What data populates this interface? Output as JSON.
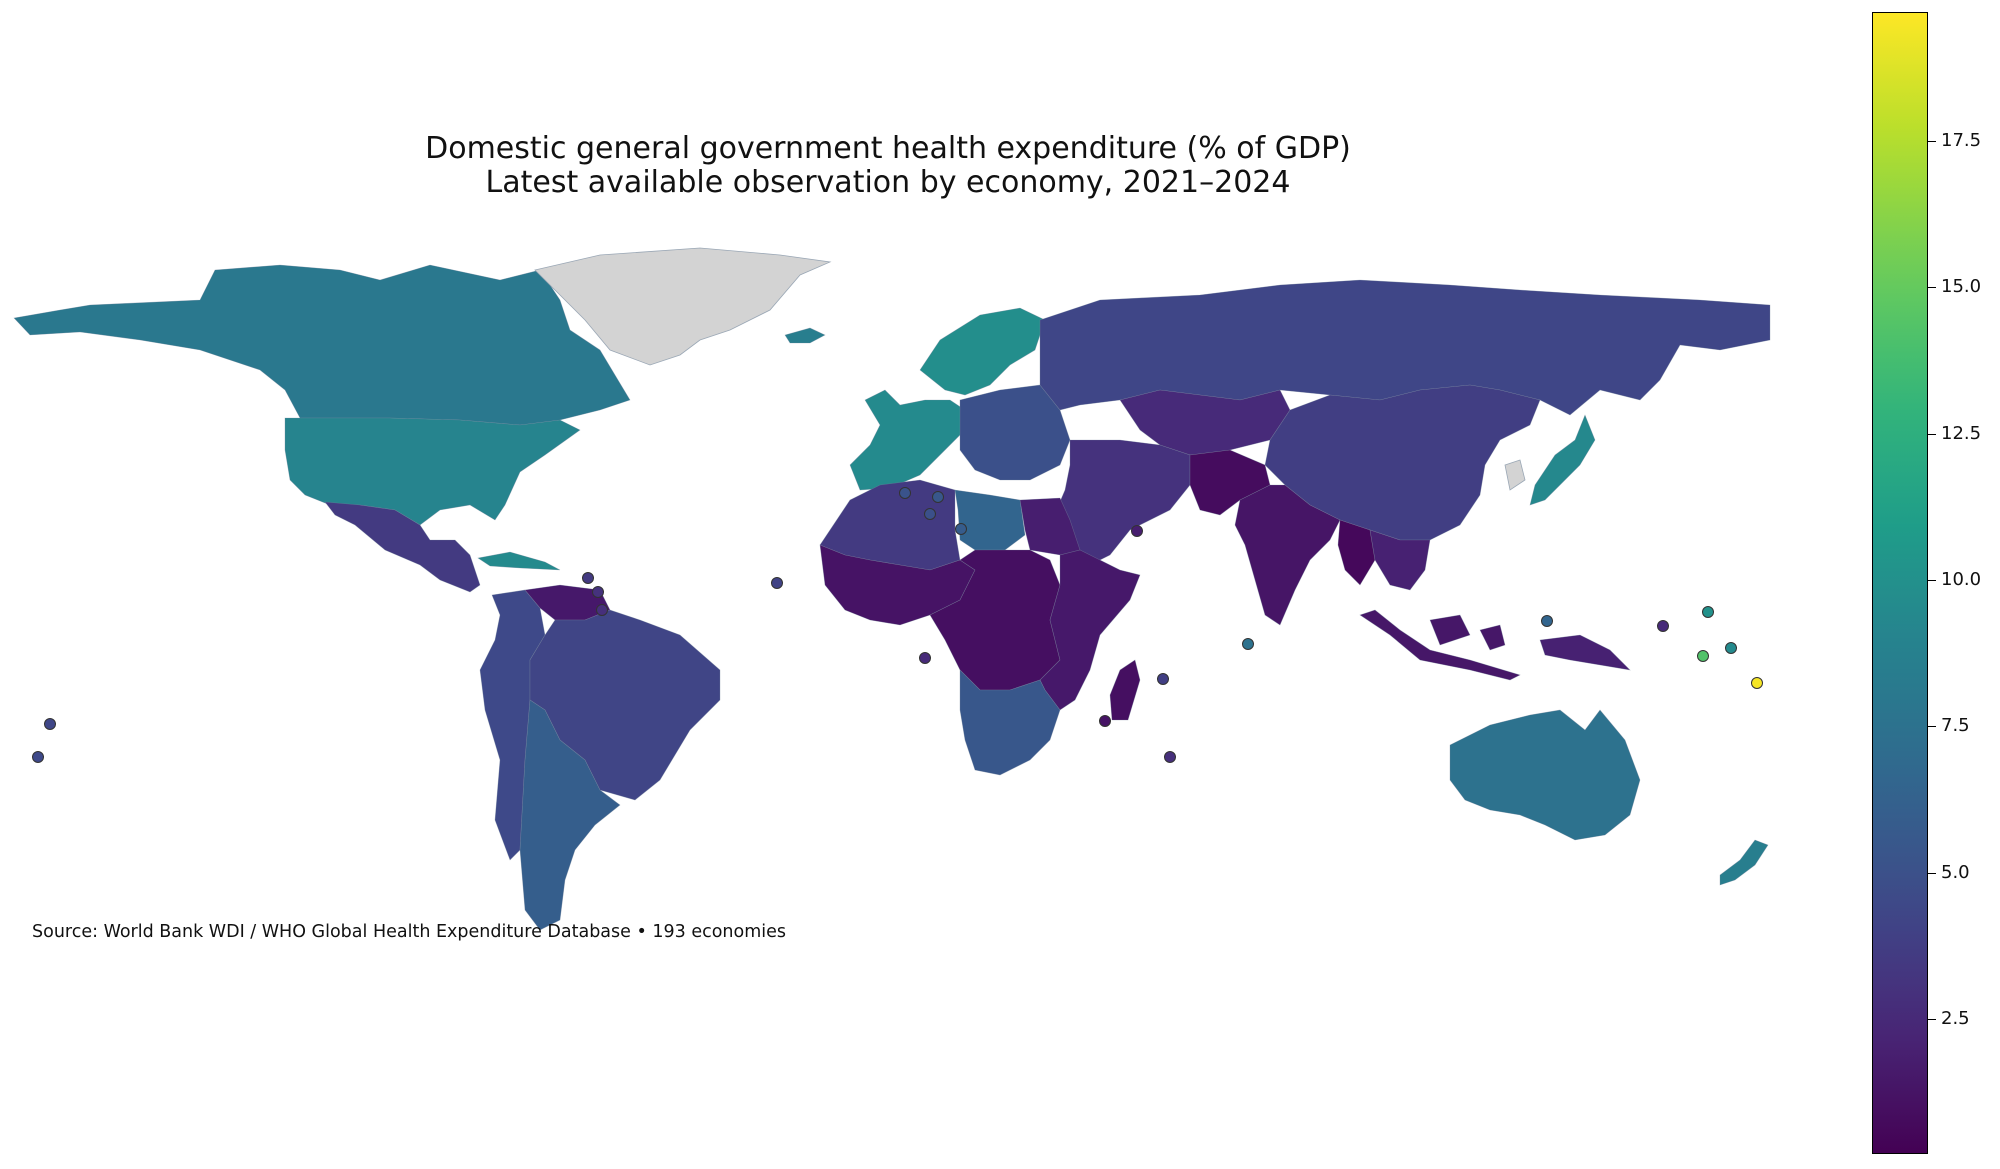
{
  "title_line1": "Domestic general government health expenditure (% of GDP)",
  "title_line2": "Latest available observation by economy, 2021–2024",
  "source": "Source: World Bank WDI / WHO Global Health Expenditure Database • 193 economies",
  "colorbar": {
    "colormap": "viridis",
    "min": 0.2,
    "max": 19.7,
    "ticks": [
      "2.5",
      "5.0",
      "7.5",
      "10.0",
      "12.5",
      "15.0",
      "17.5"
    ],
    "tick_values": [
      2.5,
      5.0,
      7.5,
      10.0,
      12.5,
      15.0,
      17.5
    ]
  },
  "no_data_color": "#d3d3d3",
  "regions": [
    {
      "name": "Canada & Alaska",
      "value": 8.0
    },
    {
      "name": "United States",
      "value": 9.0
    },
    {
      "name": "Mexico & Central America",
      "value": 3.5
    },
    {
      "name": "Cuba",
      "value": 9.5
    },
    {
      "name": "Colombia & Andes",
      "value": 4.5
    },
    {
      "name": "Venezuela",
      "value": 1.5
    },
    {
      "name": "Brazil",
      "value": 4.2
    },
    {
      "name": "Southern Cone",
      "value": 6.0
    },
    {
      "name": "Greenland",
      "value": null
    },
    {
      "name": "Iceland",
      "value": 8.5
    },
    {
      "name": "Nordics",
      "value": 9.8
    },
    {
      "name": "Western Europe",
      "value": 9.5
    },
    {
      "name": "Eastern Europe",
      "value": 5.0
    },
    {
      "name": "Russia",
      "value": 4.3
    },
    {
      "name": "Central Asia",
      "value": 2.5
    },
    {
      "name": "China",
      "value": 3.8
    },
    {
      "name": "Japan",
      "value": 9.3
    },
    {
      "name": "Korea",
      "value": null
    },
    {
      "name": "Middle East",
      "value": 3.0
    },
    {
      "name": "Afghanistan & Pakistan",
      "value": 0.8
    },
    {
      "name": "India",
      "value": 1.3
    },
    {
      "name": "Myanmar",
      "value": 0.6
    },
    {
      "name": "Southeast Asia",
      "value": 2.0
    },
    {
      "name": "Indonesia",
      "value": 1.4
    },
    {
      "name": "Papua New Guinea",
      "value": 2.0
    },
    {
      "name": "North Africa",
      "value": 3.5
    },
    {
      "name": "Libya",
      "value": 6.5
    },
    {
      "name": "Egypt",
      "value": 1.8
    },
    {
      "name": "West Africa",
      "value": 1.2
    },
    {
      "name": "Central Africa",
      "value": 1.0
    },
    {
      "name": "East Africa",
      "value": 1.5
    },
    {
      "name": "Southern Africa",
      "value": 5.5
    },
    {
      "name": "Madagascar",
      "value": 1.0
    },
    {
      "name": "Australia",
      "value": 7.5
    },
    {
      "name": "New Zealand",
      "value": 8.5
    }
  ],
  "island_markers": [
    {
      "name": "Hawaii area",
      "value": 4.5
    },
    {
      "name": "Eastern Pacific islet",
      "value": 4.3
    },
    {
      "name": "Caribbean islet 1",
      "value": 3.5
    },
    {
      "name": "Caribbean islet 2",
      "value": 3.0
    },
    {
      "name": "Caribbean islet 3",
      "value": 2.8
    },
    {
      "name": "Cabo Verde",
      "value": 4.0
    },
    {
      "name": "Sao Tome",
      "value": 2.5
    },
    {
      "name": "Luxembourg area",
      "value": 5.2
    },
    {
      "name": "Switzerland area",
      "value": 5.5
    },
    {
      "name": "Slovenia area",
      "value": 5.0
    },
    {
      "name": "Malta",
      "value": 5.8
    },
    {
      "name": "Bahrain area",
      "value": 1.8
    },
    {
      "name": "Seychelles",
      "value": 3.8
    },
    {
      "name": "Comoros",
      "value": 1.2
    },
    {
      "name": "Mauritius",
      "value": 2.8
    },
    {
      "name": "Maldives",
      "value": 7.5
    },
    {
      "name": "Palau",
      "value": 6.5
    },
    {
      "name": "Micronesia",
      "value": 2.5
    },
    {
      "name": "Marshall Islands",
      "value": 10.0
    },
    {
      "name": "Nauru",
      "value": 14.3
    },
    {
      "name": "Kiribati",
      "value": 9.5
    },
    {
      "name": "Tuvalu",
      "value": 19.5
    }
  ]
}
